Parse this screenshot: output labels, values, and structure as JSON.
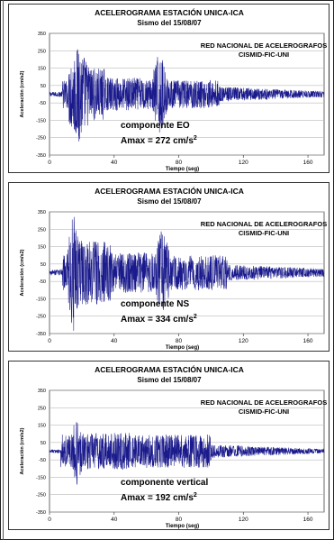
{
  "panels": [
    {
      "title": "ACELEROGRAMA ESTACIÓN UNICA-ICA",
      "subtitle": "Sismo del 15/08/07",
      "network_line1": "RED NACIONAL DE ACELEROGRAFOS",
      "network_line2": "CISMID-FIC-UNI",
      "component": "componente EO",
      "amax_text": "Amax = 272 cm/s",
      "amax_sup": "2"
    },
    {
      "title": "ACELEROGRAMA ESTACIÓN UNICA-ICA",
      "subtitle": "Sismo del 15/08/07",
      "network_line1": "RED NACIONAL DE ACELEROGRAFOS",
      "network_line2": "CISMID-FIC-UNI",
      "component": "componente NS",
      "amax_text": "Amax = 334 cm/s",
      "amax_sup": "2"
    },
    {
      "title": "ACELEROGRAMA ESTACIÓN UNICA-ICA",
      "subtitle": "Sismo del 15/08/07",
      "network_line1": "RED NACIONAL DE ACELEROGRAFOS",
      "network_line2": "CISMID-FIC-UNI",
      "component": "componente vertical",
      "amax_text": "Amax = 192 cm/s",
      "amax_sup": "2"
    }
  ],
  "chart_data": [
    {
      "type": "line",
      "xlabel": "Tiempo (seg)",
      "ylabel": "Aceleración (cm/s2)",
      "xlim": [
        0,
        170
      ],
      "ylim": [
        -350,
        350
      ],
      "xticks": [
        0,
        40,
        80,
        120,
        160
      ],
      "yticks": [
        350,
        250,
        150,
        50,
        -50,
        -150,
        -250,
        -350
      ],
      "xtick_labels": [
        "0",
        "40",
        "80",
        "120",
        "160"
      ],
      "ytick_labels": [
        "350",
        "250",
        "150",
        "50",
        "-50",
        "-150",
        "-250",
        "-350"
      ],
      "series": [
        {
          "peak_abs": 272,
          "color": "#1a1a8c"
        }
      ],
      "grid": "horizontal"
    },
    {
      "type": "line",
      "xlabel": "Tiempo (seg)",
      "ylabel": "Aceleración (cm/s2)",
      "xlim": [
        0,
        170
      ],
      "ylim": [
        -350,
        350
      ],
      "xticks": [
        0,
        40,
        80,
        120,
        160
      ],
      "yticks": [
        350,
        250,
        150,
        50,
        -50,
        -150,
        -250,
        -350
      ],
      "xtick_labels": [
        "0",
        "40",
        "80",
        "120",
        "160"
      ],
      "ytick_labels": [
        "350",
        "250",
        "150",
        "50",
        "-50",
        "-150",
        "-250",
        "-350"
      ],
      "series": [
        {
          "peak_abs": 334,
          "color": "#1a1a8c"
        }
      ],
      "grid": "horizontal"
    },
    {
      "type": "line",
      "xlabel": "Tiempo (seg)",
      "ylabel": "Aceleración (cm/s2)",
      "xlim": [
        0,
        170
      ],
      "ylim": [
        -350,
        350
      ],
      "xticks": [
        0,
        40,
        80,
        120,
        160
      ],
      "yticks": [
        350,
        250,
        150,
        50,
        -50,
        -150,
        -250,
        -350
      ],
      "xtick_labels": [
        "0",
        "40",
        "80",
        "120",
        "160"
      ],
      "ytick_labels": [
        "350",
        "250",
        "150",
        "50",
        "-50",
        "-150",
        "-250",
        "-350"
      ],
      "series": [
        {
          "peak_abs": 192,
          "color": "#1a1a8c"
        }
      ],
      "grid": "horizontal"
    }
  ]
}
